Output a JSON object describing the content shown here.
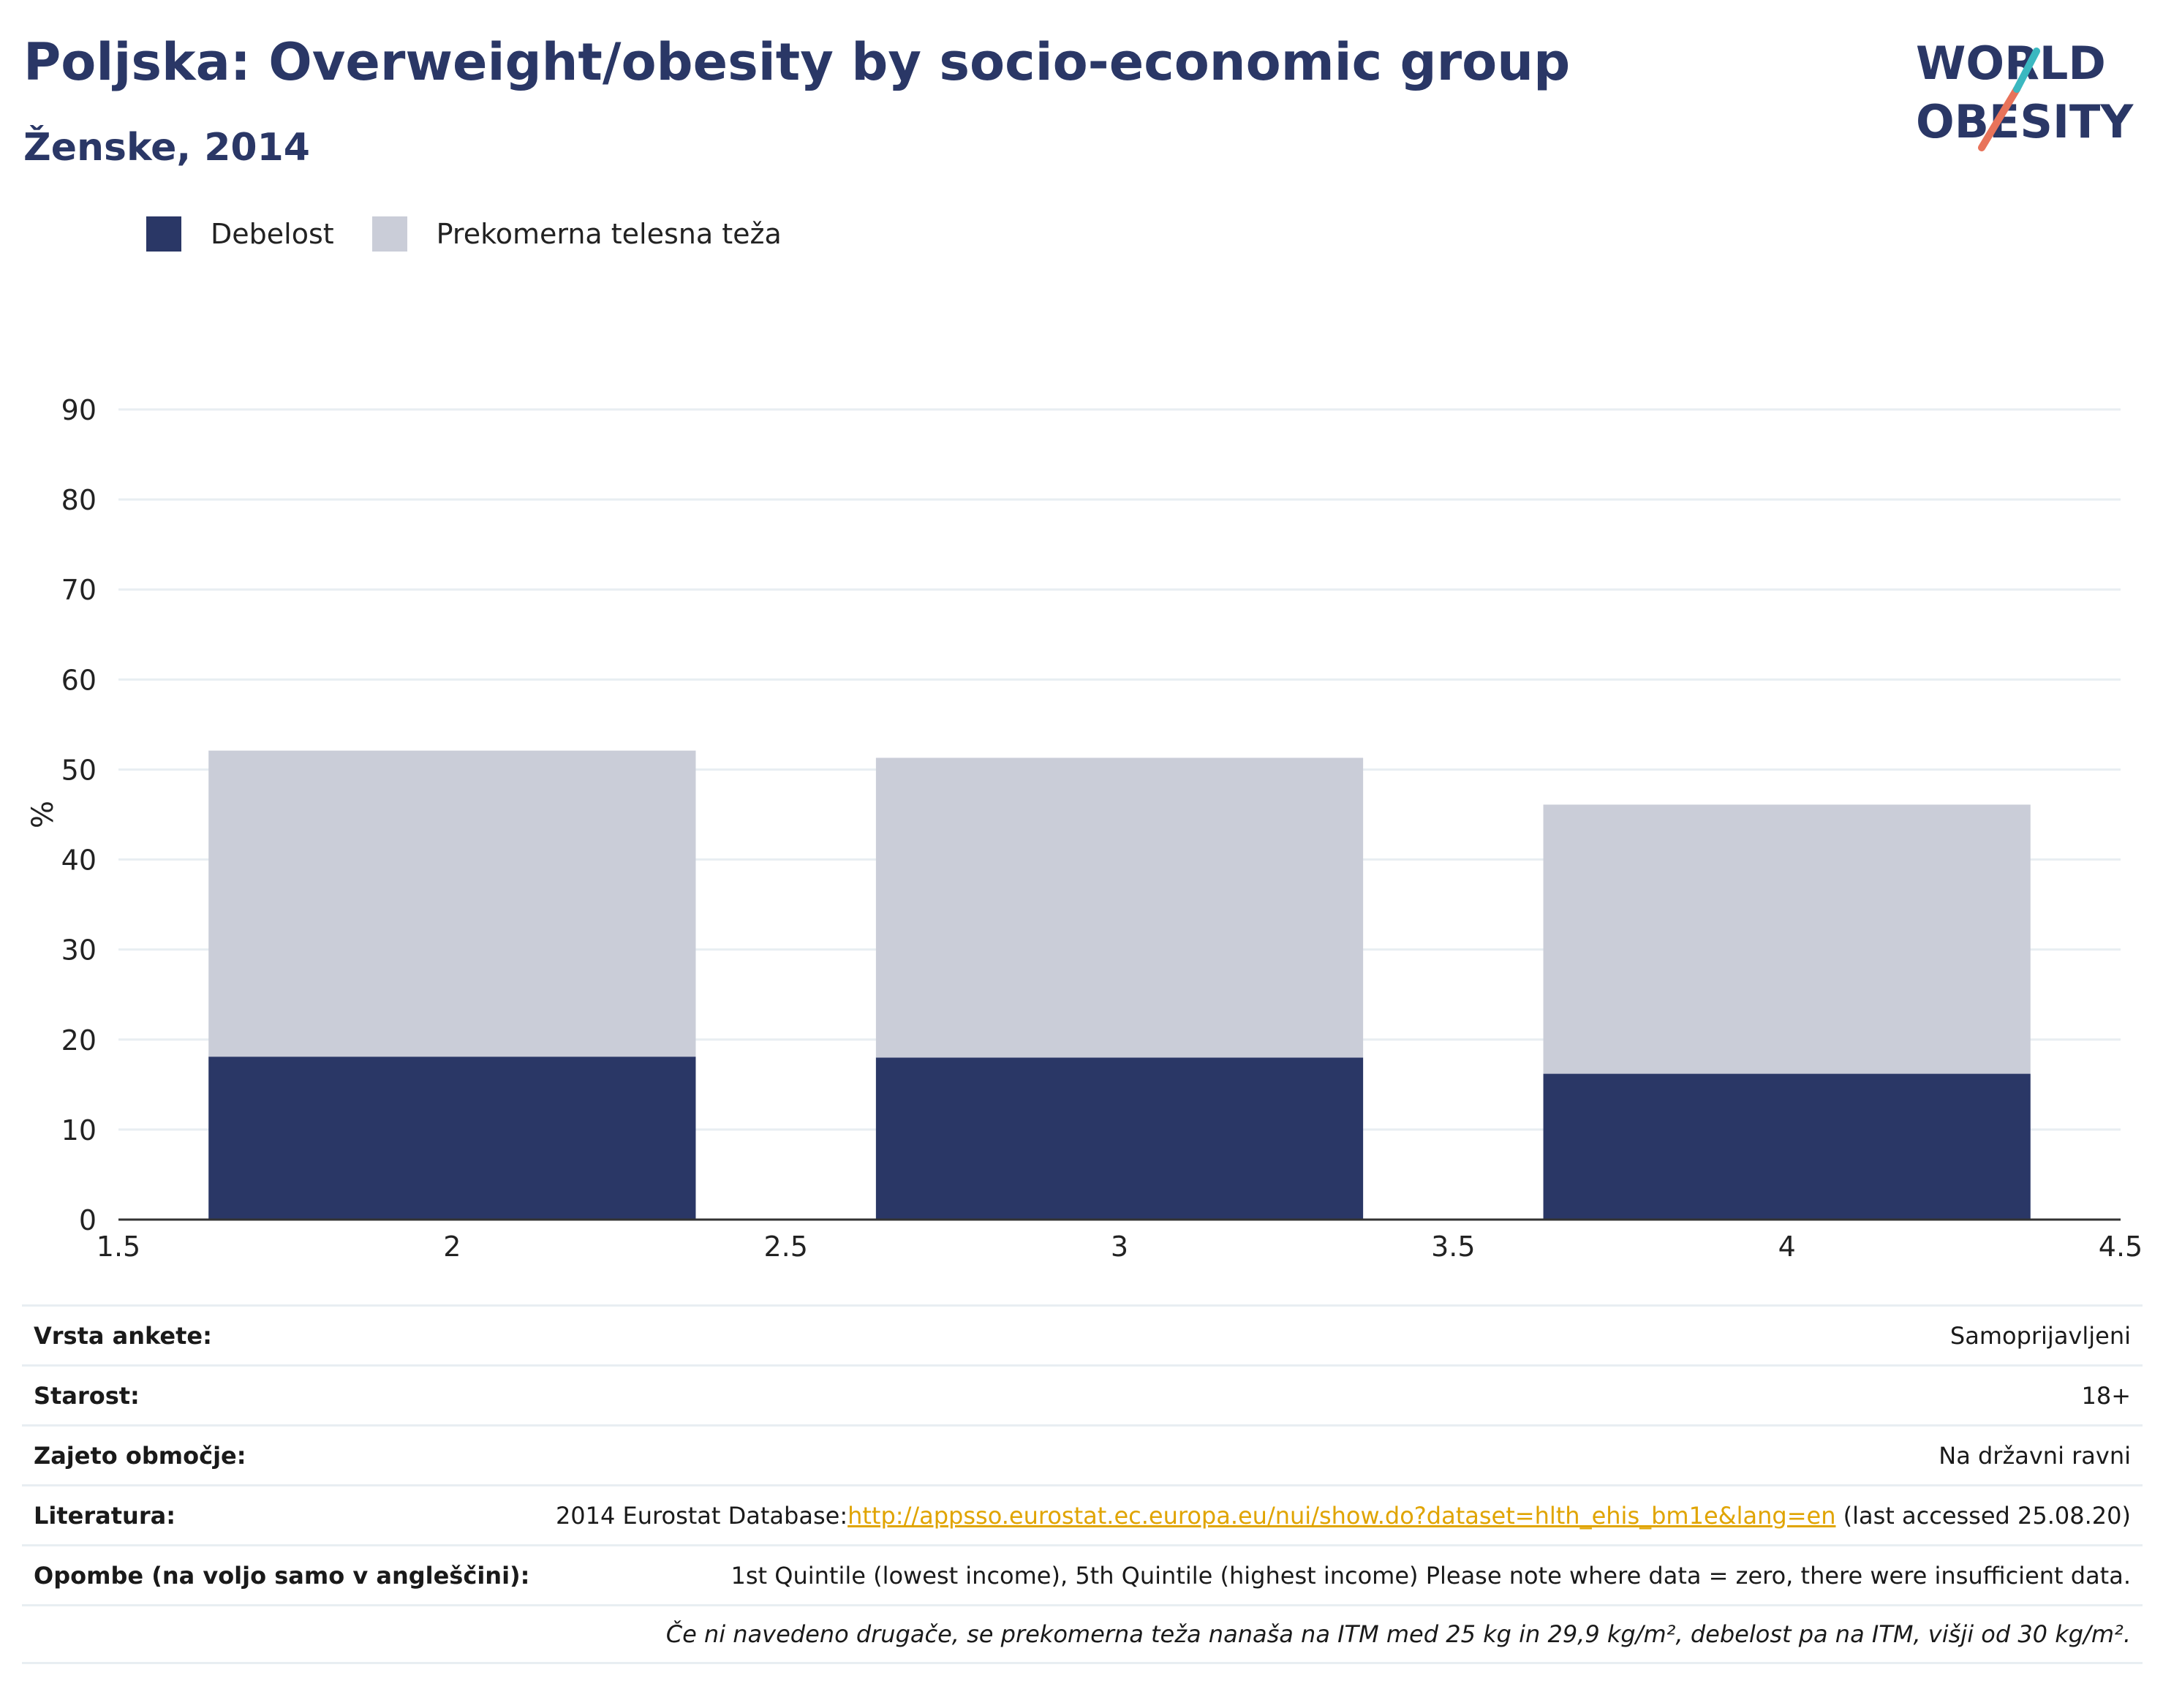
{
  "title": "Poljska: Overweight/obesity by socio-economic group",
  "subtitle": "Ženske, 2014",
  "logo": {
    "line1": "WORLD",
    "line2": "OBESITY"
  },
  "legend": [
    {
      "label": "Debelost",
      "color": "#2a3766"
    },
    {
      "label": "Prekomerna telesna teža",
      "color": "#cacdd8"
    }
  ],
  "chart_data": {
    "type": "bar",
    "stacked": true,
    "x": [
      2,
      3,
      4
    ],
    "series": [
      {
        "name": "Debelost",
        "values": [
          18.1,
          18.0,
          16.2
        ],
        "color": "#2a3766"
      },
      {
        "name": "Prekomerna telesna teža",
        "values": [
          34.0,
          33.3,
          29.9
        ],
        "color": "#cacdd8"
      }
    ],
    "xlim": [
      1.5,
      4.5
    ],
    "xticks": [
      "1.5",
      "2",
      "2.5",
      "3",
      "3.5",
      "4",
      "4.5"
    ],
    "ylim": [
      0,
      90
    ],
    "yticks": [
      "0",
      "10",
      "20",
      "30",
      "40",
      "50",
      "60",
      "70",
      "80",
      "90"
    ],
    "ylabel": "%",
    "grid": true,
    "legend_position": "top-left"
  },
  "meta": {
    "survey_label": "Vrsta ankete:",
    "survey_value": "Samoprijavljeni",
    "age_label": "Starost:",
    "age_value": "18+",
    "area_label": "Zajeto območje:",
    "area_value": "Na državni ravni",
    "ref_label": "Literatura:",
    "ref_prefix": "2014 Eurostat Database:",
    "ref_link": "http://appsso.eurostat.ec.europa.eu/nui/show.do?dataset=hlth_ehis_bm1e&lang=en",
    "ref_suffix": " (last accessed 25.08.20)",
    "notes_label": "Opombe (na voljo samo v angleščini):",
    "notes_value": "1st Quintile (lowest income), 5th Quintile (highest income) Please note where data = zero, there were insufficient data.",
    "footnote": "Če ni navedeno drugače, se prekomerna teža nanaša na ITM med 25 kg in 29,9 kg/m², debelost pa na ITM, višji od 30 kg/m²."
  }
}
